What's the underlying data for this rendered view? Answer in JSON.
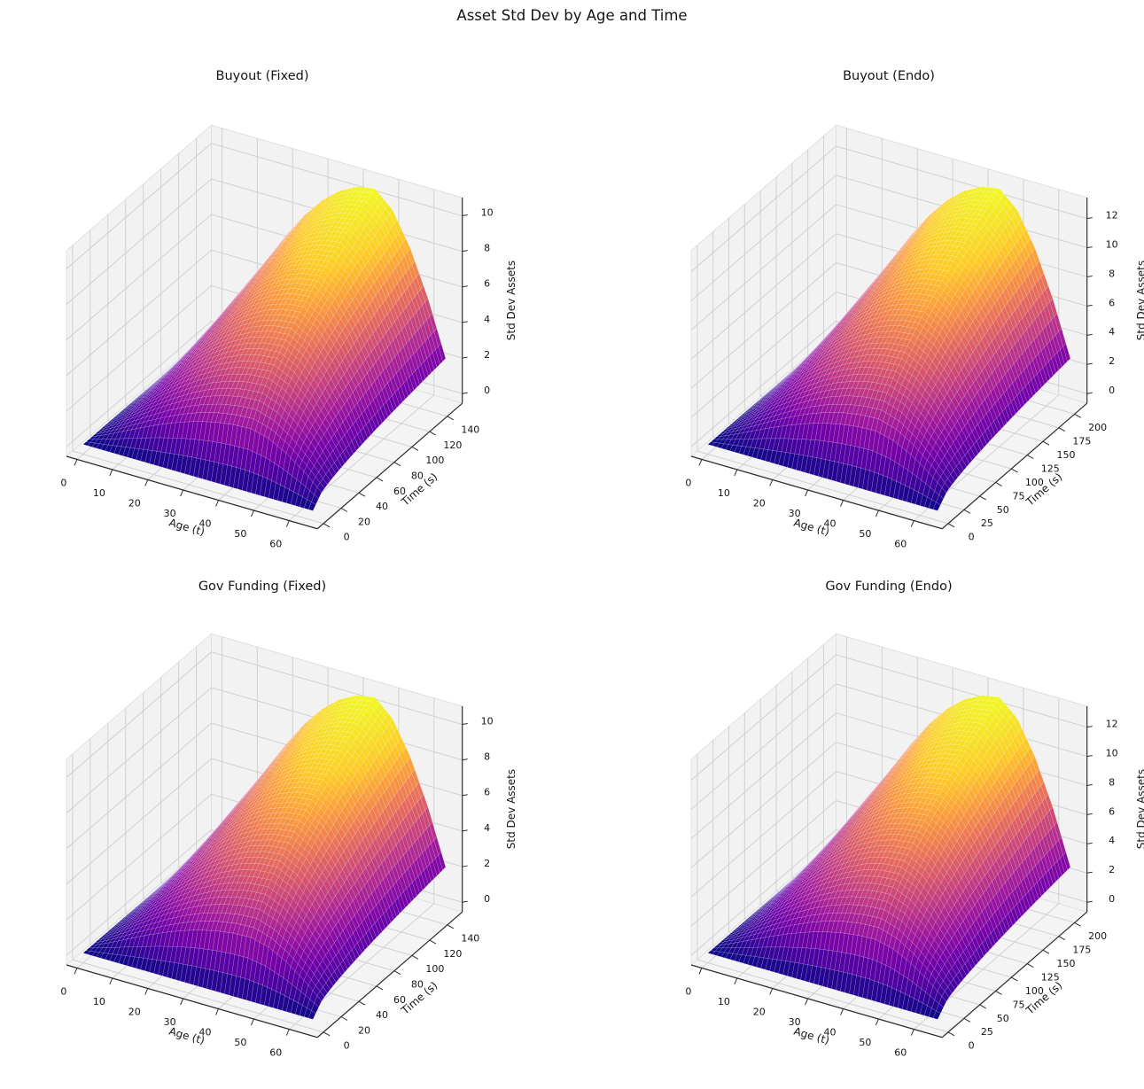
{
  "figure_title": "Asset Std Dev by Age and Time",
  "colors": {
    "background": "#ffffff",
    "text": "#141414",
    "spine": "#2e2e2e",
    "grid": "#cdcdcd",
    "pane": "#f2f2f2",
    "pane_floor": "#f4f4f4",
    "pane_edge": "#dcdcdc",
    "surface_colormap": "plasma",
    "plasma_stops": [
      "#0d0887",
      "#46039f",
      "#7201a8",
      "#9c179e",
      "#bd3786",
      "#d8576b",
      "#ed7953",
      "#fb9f3a",
      "#fdca26",
      "#f6e226",
      "#f0f921"
    ]
  },
  "chart_data": [
    {
      "id": "buyout-fixed",
      "type": "surface",
      "title": "Buyout (Fixed)",
      "xlabel": "Age (t)",
      "ylabel": "Time (s)",
      "zlabel": "Std Dev Assets",
      "x_ticks": [
        0,
        10,
        20,
        30,
        40,
        50,
        60
      ],
      "y_ticks": [
        0,
        20,
        40,
        60,
        80,
        100,
        120,
        140
      ],
      "z_ticks": [
        0,
        2,
        4,
        6,
        8,
        10
      ],
      "x_range": [
        0,
        65
      ],
      "y_range": [
        0,
        150
      ],
      "z_max": 10.5,
      "ages": [
        0,
        5,
        10,
        15,
        20,
        25,
        30,
        35,
        40,
        45,
        50,
        55,
        60,
        65
      ],
      "age_profile": [
        0,
        0.146,
        0.307,
        0.467,
        0.615,
        0.746,
        0.854,
        0.934,
        0.983,
        1.0,
        0.913,
        0.736,
        0.495,
        0.2
      ],
      "times": [
        0,
        10,
        20,
        30,
        40,
        50,
        60,
        70,
        80,
        90,
        100,
        110,
        120,
        130,
        140,
        150
      ],
      "time_profile": [
        0,
        0.296,
        0.404,
        0.485,
        0.552,
        0.61,
        0.662,
        0.71,
        0.753,
        0.795,
        0.833,
        0.87,
        0.904,
        0.938,
        0.969,
        1.0
      ],
      "z_formula": "z[time_i][age_j] = z_max * time_profile[i] * age_profile[j]"
    },
    {
      "id": "buyout-endo",
      "type": "surface",
      "title": "Buyout (Endo)",
      "xlabel": "Age (t)",
      "ylabel": "Time (s)",
      "zlabel": "Std Dev Assets",
      "x_ticks": [
        0,
        10,
        20,
        30,
        40,
        50,
        60
      ],
      "y_ticks": [
        0,
        25,
        50,
        75,
        100,
        125,
        150,
        175,
        200
      ],
      "z_ticks": [
        0,
        2,
        4,
        6,
        8,
        10,
        12
      ],
      "x_range": [
        0,
        65
      ],
      "y_range": [
        0,
        210
      ],
      "z_max": 12.8,
      "ages": [
        0,
        5,
        10,
        15,
        20,
        25,
        30,
        35,
        40,
        45,
        50,
        55,
        60,
        65
      ],
      "age_profile": [
        0,
        0.146,
        0.307,
        0.467,
        0.615,
        0.746,
        0.854,
        0.934,
        0.983,
        1.0,
        0.913,
        0.736,
        0.495,
        0.2
      ],
      "times": [
        0,
        15,
        30,
        45,
        60,
        75,
        90,
        105,
        120,
        135,
        150,
        165,
        180,
        195,
        210
      ],
      "time_profile": [
        0,
        0.305,
        0.417,
        0.5,
        0.569,
        0.629,
        0.683,
        0.732,
        0.777,
        0.82,
        0.859,
        0.897,
        0.933,
        0.967,
        1.0
      ],
      "z_formula": "z[time_i][age_j] = z_max * time_profile[i] * age_profile[j]"
    },
    {
      "id": "gov-funding-fixed",
      "type": "surface",
      "title": "Gov Funding (Fixed)",
      "xlabel": "Age (t)",
      "ylabel": "Time (s)",
      "zlabel": "Std Dev Assets",
      "x_ticks": [
        0,
        10,
        20,
        30,
        40,
        50,
        60
      ],
      "y_ticks": [
        0,
        20,
        40,
        60,
        80,
        100,
        120,
        140
      ],
      "z_ticks": [
        0,
        2,
        4,
        6,
        8,
        10
      ],
      "x_range": [
        0,
        65
      ],
      "y_range": [
        0,
        150
      ],
      "z_max": 10.5,
      "ages": [
        0,
        5,
        10,
        15,
        20,
        25,
        30,
        35,
        40,
        45,
        50,
        55,
        60,
        65
      ],
      "age_profile": [
        0,
        0.146,
        0.307,
        0.467,
        0.615,
        0.746,
        0.854,
        0.934,
        0.983,
        1.0,
        0.913,
        0.736,
        0.495,
        0.2
      ],
      "times": [
        0,
        10,
        20,
        30,
        40,
        50,
        60,
        70,
        80,
        90,
        100,
        110,
        120,
        130,
        140,
        150
      ],
      "time_profile": [
        0,
        0.296,
        0.404,
        0.485,
        0.552,
        0.61,
        0.662,
        0.71,
        0.753,
        0.795,
        0.833,
        0.87,
        0.904,
        0.938,
        0.969,
        1.0
      ],
      "z_formula": "z[time_i][age_j] = z_max * time_profile[i] * age_profile[j]"
    },
    {
      "id": "gov-funding-endo",
      "type": "surface",
      "title": "Gov Funding (Endo)",
      "xlabel": "Age (t)",
      "ylabel": "Time (s)",
      "zlabel": "Std Dev Assets",
      "x_ticks": [
        0,
        10,
        20,
        30,
        40,
        50,
        60
      ],
      "y_ticks": [
        0,
        25,
        50,
        75,
        100,
        125,
        150,
        175,
        200
      ],
      "z_ticks": [
        0,
        2,
        4,
        6,
        8,
        10,
        12
      ],
      "x_range": [
        0,
        65
      ],
      "y_range": [
        0,
        210
      ],
      "z_max": 12.8,
      "ages": [
        0,
        5,
        10,
        15,
        20,
        25,
        30,
        35,
        40,
        45,
        50,
        55,
        60,
        65
      ],
      "age_profile": [
        0,
        0.146,
        0.307,
        0.467,
        0.615,
        0.746,
        0.854,
        0.934,
        0.983,
        1.0,
        0.913,
        0.736,
        0.495,
        0.2
      ],
      "times": [
        0,
        15,
        30,
        45,
        60,
        75,
        90,
        105,
        120,
        135,
        150,
        165,
        180,
        195,
        210
      ],
      "time_profile": [
        0,
        0.305,
        0.417,
        0.5,
        0.569,
        0.629,
        0.683,
        0.732,
        0.777,
        0.82,
        0.859,
        0.897,
        0.933,
        0.967,
        1.0
      ],
      "z_formula": "z[time_i][age_j] = z_max * time_profile[i] * age_profile[j]"
    }
  ]
}
